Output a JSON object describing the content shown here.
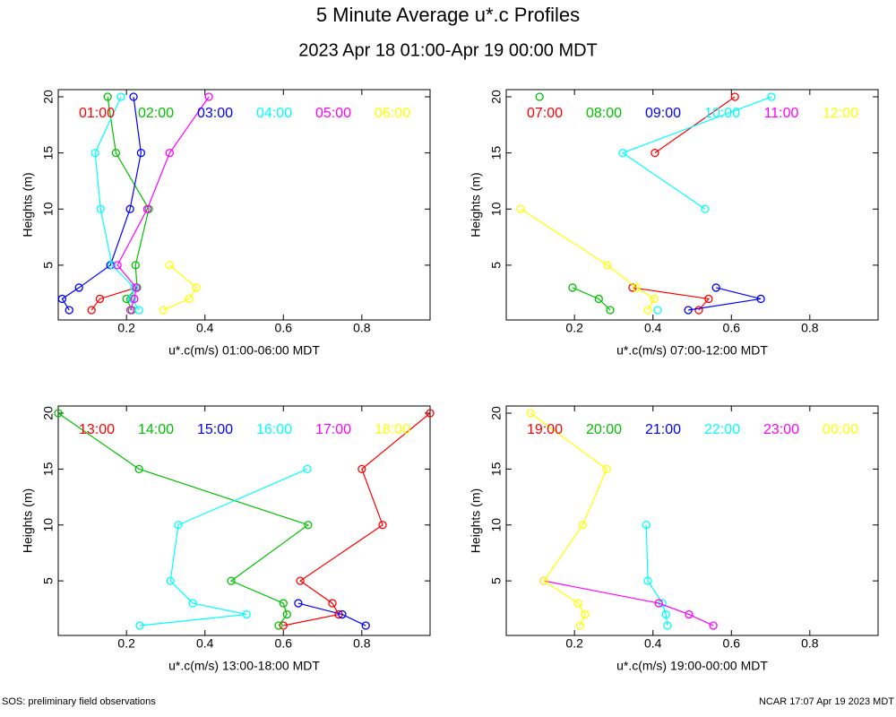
{
  "title": "5 Minute Average u*.c Profiles",
  "subtitle": "2023 Apr 18 01:00-Apr 19 00:00 MDT",
  "footer_left": "SOS: preliminary field observations",
  "footer_right": "NCAR 17:07 Apr 19 2023 MDT",
  "chart_data": [
    {
      "type": "line",
      "xlabel": "u*.c(m/s) 01:00-06:00 MDT",
      "ylabel": "Heights (m)",
      "y": [
        20,
        15,
        10,
        5,
        3,
        2,
        1
      ],
      "xlim": [
        0.026,
        0.974
      ],
      "ylim": [
        0.12,
        20.64
      ],
      "xticks": [
        0.2,
        0.4,
        0.6,
        0.8
      ],
      "yticks": [
        5,
        10,
        15,
        20
      ],
      "series": [
        {
          "name": "01:00",
          "color": "#ff0000",
          "values": [
            null,
            null,
            null,
            null,
            0.225,
            0.132,
            0.111
          ]
        },
        {
          "name": "02:00",
          "color": "#00c000",
          "values": [
            0.152,
            0.173,
            0.257,
            0.223,
            0.227,
            0.2,
            0.214
          ]
        },
        {
          "name": "03:00",
          "color": "#0000ff",
          "values": [
            0.218,
            0.237,
            0.209,
            0.159,
            0.079,
            0.036,
            0.054
          ]
        },
        {
          "name": "04:00",
          "color": "#00ffff",
          "values": [
            0.186,
            0.12,
            0.134,
            0.163,
            0.22,
            0.214,
            0.232
          ]
        },
        {
          "name": "05:00",
          "color": "#ff00ff",
          "values": [
            0.41,
            0.31,
            0.253,
            0.177,
            0.225,
            0.22,
            0.21
          ]
        },
        {
          "name": "06:00",
          "color": "#ffff00",
          "values": [
            null,
            null,
            null,
            0.31,
            0.378,
            0.36,
            0.294
          ]
        }
      ]
    },
    {
      "type": "line",
      "xlabel": "u*.c(m/s) 07:00-12:00 MDT",
      "ylabel": "Heights (m)",
      "y": [
        20,
        15,
        10,
        5,
        3,
        2,
        1
      ],
      "xlim": [
        0.026,
        0.974
      ],
      "ylim": [
        0.12,
        20.64
      ],
      "xticks": [
        0.2,
        0.4,
        0.6,
        0.8
      ],
      "yticks": [
        5,
        10,
        15,
        20
      ],
      "series": [
        {
          "name": "07:00",
          "color": "#ff0000",
          "values": [
            0.609,
            0.405,
            null,
            null,
            0.348,
            0.542,
            0.517
          ]
        },
        {
          "name": "08:00",
          "color": "#00c000",
          "values": [
            0.111,
            null,
            null,
            null,
            0.195,
            0.262,
            0.291
          ]
        },
        {
          "name": "09:00",
          "color": "#0000ff",
          "values": [
            null,
            null,
            null,
            null,
            0.561,
            0.675,
            0.49
          ]
        },
        {
          "name": "10:00",
          "color": "#00ffff",
          "values": [
            0.702,
            0.323,
            0.533,
            null,
            null,
            null,
            0.412
          ]
        },
        {
          "name": "11:00",
          "color": "#ff00ff",
          "values": [
            null,
            null,
            null,
            null,
            null,
            null,
            null
          ]
        },
        {
          "name": "12:00",
          "color": "#ffff00",
          "values": [
            null,
            null,
            0.063,
            0.284,
            0.358,
            0.403,
            0.387
          ]
        }
      ]
    },
    {
      "type": "line",
      "xlabel": "u*.c(m/s) 13:00-18:00 MDT",
      "ylabel": "Heights (m)",
      "y": [
        20,
        15,
        10,
        5,
        3,
        2,
        1
      ],
      "xlim": [
        0.026,
        0.974
      ],
      "ylim": [
        0.12,
        20.64
      ],
      "xticks": [
        0.2,
        0.4,
        0.6,
        0.8
      ],
      "yticks": [
        5,
        10,
        15,
        20
      ],
      "series": [
        {
          "name": "13:00",
          "color": "#ff0000",
          "values": [
            0.974,
            0.8,
            0.853,
            0.643,
            0.725,
            0.741,
            0.6
          ]
        },
        {
          "name": "14:00",
          "color": "#00c000",
          "values": [
            0.026,
            0.232,
            0.663,
            0.467,
            0.6,
            0.609,
            0.588
          ]
        },
        {
          "name": "15:00",
          "color": "#0000ff",
          "values": [
            null,
            null,
            null,
            null,
            0.638,
            0.75,
            0.81
          ]
        },
        {
          "name": "16:00",
          "color": "#00ffff",
          "values": [
            null,
            0.661,
            0.332,
            0.312,
            0.369,
            0.506,
            0.234
          ]
        },
        {
          "name": "17:00",
          "color": "#ff00ff",
          "values": [
            null,
            null,
            null,
            null,
            null,
            null,
            null
          ]
        },
        {
          "name": "18:00",
          "color": "#ffff00",
          "values": [
            null,
            null,
            null,
            null,
            null,
            null,
            null
          ]
        }
      ]
    },
    {
      "type": "line",
      "xlabel": "u*.c(m/s) 19:00-00:00 MDT",
      "ylabel": "Heights (m)",
      "y": [
        20,
        15,
        10,
        5,
        3,
        2,
        1
      ],
      "xlim": [
        0.026,
        0.974
      ],
      "ylim": [
        0.12,
        20.64
      ],
      "xticks": [
        0.2,
        0.4,
        0.6,
        0.8
      ],
      "yticks": [
        5,
        10,
        15,
        20
      ],
      "series": [
        {
          "name": "19:00",
          "color": "#ff0000",
          "values": [
            null,
            null,
            null,
            null,
            null,
            null,
            null
          ]
        },
        {
          "name": "20:00",
          "color": "#00c000",
          "values": [
            null,
            null,
            null,
            null,
            null,
            null,
            null
          ]
        },
        {
          "name": "21:00",
          "color": "#0000ff",
          "values": [
            null,
            null,
            null,
            null,
            null,
            null,
            null
          ]
        },
        {
          "name": "22:00",
          "color": "#00ffff",
          "values": [
            null,
            null,
            0.383,
            0.387,
            0.424,
            0.433,
            0.437
          ]
        },
        {
          "name": "23:00",
          "color": "#ff00ff",
          "values": [
            null,
            null,
            null,
            0.122,
            0.415,
            0.492,
            0.554
          ]
        },
        {
          "name": "00:00",
          "color": "#ffff00",
          "values": [
            0.088,
            0.282,
            0.221,
            0.122,
            0.209,
            0.227,
            0.214
          ]
        }
      ]
    }
  ]
}
